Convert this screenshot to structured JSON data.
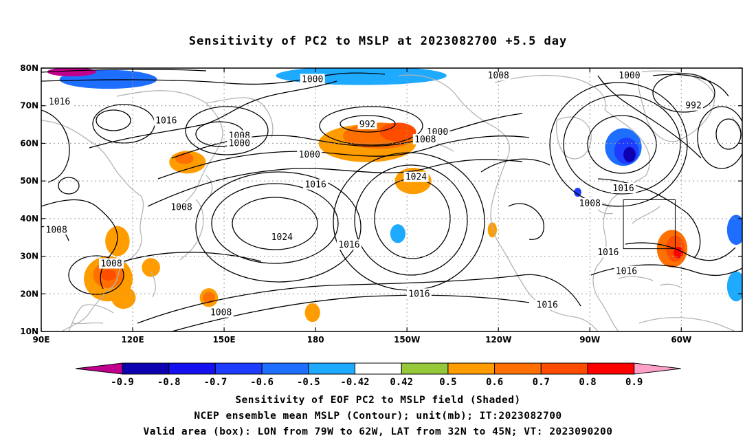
{
  "title": "Sensitivity of PC2 to MSLP at 2023082700 +5.5 day",
  "captions": {
    "line1": "Sensitivity of EOF PC2 to MSLP field (Shaded)",
    "line2": "NCEP ensemble mean MSLP (Contour); unit(mb); IT:2023082700",
    "line3": "Valid area (box): LON from 79W to 62W, LAT from 32N to 45N; VT: 2023090200"
  },
  "map": {
    "lat_ticks": [
      "80N",
      "70N",
      "60N",
      "50N",
      "40N",
      "30N",
      "20N",
      "10N"
    ],
    "lon_ticks": [
      "90E",
      "120E",
      "150E",
      "180",
      "150W",
      "120W",
      "90W",
      "60W"
    ],
    "lon_range": [
      90,
      320
    ],
    "lat_range": [
      10,
      80
    ],
    "valid_box": {
      "lon_from": "79W",
      "lon_to": "62W",
      "lat_from": "32N",
      "lat_to": "45N"
    },
    "contour_labels": [
      {
        "text": "1016",
        "lon": 96,
        "lat": 71
      },
      {
        "text": "1016",
        "lon": 131,
        "lat": 66
      },
      {
        "text": "1008",
        "lon": 155,
        "lat": 62
      },
      {
        "text": "1000",
        "lon": 155,
        "lat": 60
      },
      {
        "text": "1000",
        "lon": 179,
        "lat": 77
      },
      {
        "text": "992",
        "lon": 197,
        "lat": 65
      },
      {
        "text": "1000",
        "lon": 178,
        "lat": 57
      },
      {
        "text": "1016",
        "lon": 180,
        "lat": 49
      },
      {
        "text": "1000",
        "lon": 220,
        "lat": 63
      },
      {
        "text": "1008",
        "lon": 216,
        "lat": 61
      },
      {
        "text": "1024",
        "lon": 213,
        "lat": 51
      },
      {
        "text": "1008",
        "lon": 136,
        "lat": 43
      },
      {
        "text": "1008",
        "lon": 95,
        "lat": 37
      },
      {
        "text": "1024",
        "lon": 169,
        "lat": 35
      },
      {
        "text": "1016",
        "lon": 191,
        "lat": 33
      },
      {
        "text": "1008",
        "lon": 113,
        "lat": 28
      },
      {
        "text": "1016",
        "lon": 214,
        "lat": 20
      },
      {
        "text": "1008",
        "lon": 149,
        "lat": 15
      },
      {
        "text": "1008",
        "lon": 240,
        "lat": 78
      },
      {
        "text": "1000",
        "lon": 283,
        "lat": 78
      },
      {
        "text": "992",
        "lon": 304,
        "lat": 70
      },
      {
        "text": "1016",
        "lon": 281,
        "lat": 48
      },
      {
        "text": "1008",
        "lon": 270,
        "lat": 44
      },
      {
        "text": "1016",
        "lon": 276,
        "lat": 31
      },
      {
        "text": "1016",
        "lon": 282,
        "lat": 26
      },
      {
        "text": "1016",
        "lon": 256,
        "lat": 17
      }
    ],
    "sensitivity_blobs": [
      {
        "lon": 197,
        "lat": 60,
        "rx": 16,
        "ry": 5,
        "value": 0.5
      },
      {
        "lon": 201,
        "lat": 62,
        "rx": 12,
        "ry": 3.5,
        "value": 0.6
      },
      {
        "lon": 207,
        "lat": 63,
        "rx": 6,
        "ry": 2.5,
        "value": 0.7
      },
      {
        "lon": 212,
        "lat": 50,
        "rx": 6,
        "ry": 3.5,
        "value": 0.5
      },
      {
        "lon": 138,
        "lat": 55,
        "rx": 6,
        "ry": 3,
        "value": 0.5
      },
      {
        "lon": 137,
        "lat": 56,
        "rx": 3,
        "ry": 1.5,
        "value": 0.6
      },
      {
        "lon": 112,
        "lat": 24,
        "rx": 8,
        "ry": 6,
        "value": 0.5
      },
      {
        "lon": 112,
        "lat": 25,
        "rx": 5,
        "ry": 3.5,
        "value": 0.6
      },
      {
        "lon": 112,
        "lat": 25,
        "rx": 2.5,
        "ry": 1.5,
        "value": 0.7
      },
      {
        "lon": 115,
        "lat": 34,
        "rx": 4,
        "ry": 4,
        "value": 0.5
      },
      {
        "lon": 117,
        "lat": 19,
        "rx": 4,
        "ry": 3,
        "value": 0.5
      },
      {
        "lon": 126,
        "lat": 27,
        "rx": 3,
        "ry": 2.5,
        "value": 0.5
      },
      {
        "lon": 145,
        "lat": 19,
        "rx": 3,
        "ry": 2.5,
        "value": 0.5
      },
      {
        "lon": 145,
        "lat": 19,
        "rx": 2,
        "ry": 1.5,
        "value": 0.6
      },
      {
        "lon": 179,
        "lat": 15,
        "rx": 2.5,
        "ry": 2.5,
        "value": 0.5
      },
      {
        "lon": 238,
        "lat": 37,
        "rx": 1.5,
        "ry": 2,
        "value": 0.5
      },
      {
        "lon": 297,
        "lat": 32,
        "rx": 5,
        "ry": 5,
        "value": 0.6
      },
      {
        "lon": 298,
        "lat": 32,
        "rx": 3,
        "ry": 3.5,
        "value": 0.7
      },
      {
        "lon": 299,
        "lat": 31,
        "rx": 1.5,
        "ry": 1.5,
        "value": 0.8
      },
      {
        "lon": 195,
        "lat": 78,
        "rx": 28,
        "ry": 2.5,
        "value": -0.42
      },
      {
        "lon": 112,
        "lat": 77,
        "rx": 16,
        "ry": 2.5,
        "value": -0.5
      },
      {
        "lon": 100,
        "lat": 79,
        "rx": 8,
        "ry": 1.2,
        "value": -0.9
      },
      {
        "lon": 281,
        "lat": 59,
        "rx": 6,
        "ry": 5,
        "value": -0.5
      },
      {
        "lon": 282,
        "lat": 58,
        "rx": 4,
        "ry": 3.5,
        "value": -0.6
      },
      {
        "lon": 283,
        "lat": 57,
        "rx": 2,
        "ry": 2,
        "value": -0.8
      },
      {
        "lon": 207,
        "lat": 36,
        "rx": 2.5,
        "ry": 2.5,
        "value": -0.42
      },
      {
        "lon": 266,
        "lat": 47,
        "rx": 1.2,
        "ry": 1.2,
        "value": -0.6
      },
      {
        "lon": 318,
        "lat": 37,
        "rx": 3,
        "ry": 4,
        "value": -0.5
      },
      {
        "lon": 318,
        "lat": 22,
        "rx": 3,
        "ry": 4,
        "value": -0.42
      }
    ]
  },
  "colorbar": {
    "labels": [
      "-0.9",
      "-0.8",
      "-0.7",
      "-0.6",
      "-0.5",
      "-0.42",
      "0.42",
      "0.5",
      "0.6",
      "0.7",
      "0.8",
      "0.9"
    ],
    "colors": [
      "#0c00b0",
      "#1410f0",
      "#1e3cff",
      "#1e6eff",
      "#1eaaff",
      "#ffffff",
      "#95c93a",
      "#ff9c00",
      "#ff7000",
      "#ff4d00",
      "#ff0000"
    ],
    "end_low_color": "#c0008c",
    "end_high_color": "#ffa0c8"
  }
}
